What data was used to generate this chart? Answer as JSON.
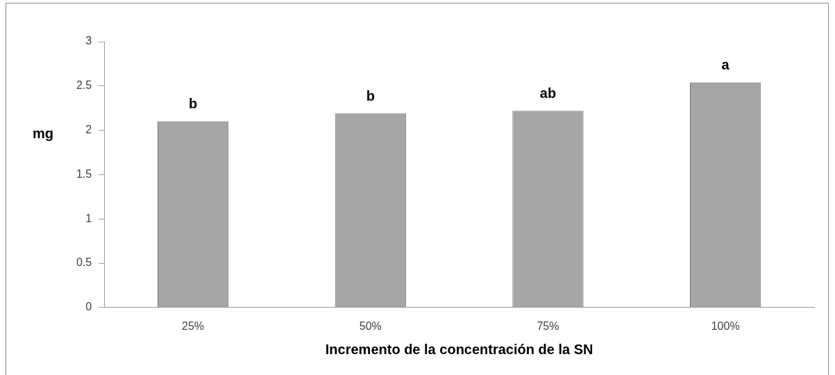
{
  "chart_data": {
    "type": "bar",
    "xlabel": "Incremento de la concentración de la SN",
    "ylabel": "mg",
    "categories": [
      "25%",
      "50%",
      "75%",
      "100%"
    ],
    "values": [
      2.1,
      2.19,
      2.22,
      2.54
    ],
    "color": "#a6a6a6",
    "ylim": [
      0,
      3
    ],
    "yticks": [
      0,
      0.5,
      1,
      1.5,
      2,
      2.5,
      3
    ],
    "grid": false,
    "legend": false,
    "annotations": [
      {
        "text": "b",
        "x": "25%",
        "y": 2.1
      },
      {
        "text": "b",
        "x": "50%",
        "y": 2.19
      },
      {
        "text": "ab",
        "x": "75%",
        "y": 2.22
      },
      {
        "text": "a",
        "x": "100%",
        "y": 2.54
      }
    ]
  }
}
